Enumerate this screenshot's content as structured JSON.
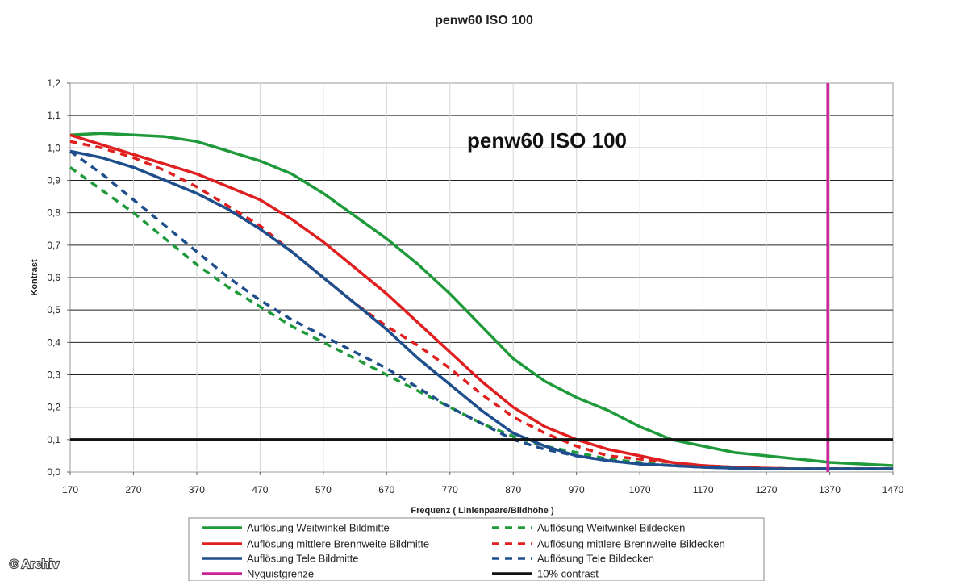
{
  "chart_data": {
    "type": "line",
    "title": "penw60 ISO 100",
    "inner_title": "penw60 ISO 100",
    "xlabel": "Frequenz ( Linienpaare/Bildhöhe )",
    "ylabel": "Kontrast",
    "xlim": [
      170,
      1470
    ],
    "ylim": [
      0.0,
      1.2
    ],
    "x_ticks": [
      "170",
      "270",
      "370",
      "470",
      "570",
      "670",
      "770",
      "870",
      "970",
      "1070",
      "1170",
      "1270",
      "1370",
      "1470"
    ],
    "y_ticks": [
      "0,0",
      "0,1",
      "0,2",
      "0,3",
      "0,4",
      "0,5",
      "0,6",
      "0,7",
      "0,8",
      "0,9",
      "1,0",
      "1,1",
      "1,2"
    ],
    "grid": "horizontal",
    "legend_position": "bottom",
    "copyright": "© Archiv",
    "series": [
      {
        "name": "Auflösung Weitwinkel Bildmitte",
        "color": "#1f9a3a",
        "style": "solid",
        "x": [
          170,
          220,
          270,
          320,
          370,
          420,
          470,
          520,
          570,
          620,
          670,
          720,
          770,
          820,
          870,
          920,
          970,
          1020,
          1070,
          1120,
          1170,
          1220,
          1270,
          1320,
          1370,
          1420,
          1470
        ],
        "y": [
          1.04,
          1.045,
          1.04,
          1.035,
          1.02,
          0.99,
          0.96,
          0.92,
          0.86,
          0.79,
          0.72,
          0.64,
          0.55,
          0.45,
          0.35,
          0.28,
          0.23,
          0.19,
          0.14,
          0.1,
          0.08,
          0.06,
          0.05,
          0.04,
          0.03,
          0.025,
          0.02
        ]
      },
      {
        "name": "Auflösung Weitwinkel Bildecken",
        "color": "#1f9a3a",
        "style": "dashed",
        "x": [
          170,
          220,
          270,
          320,
          370,
          420,
          470,
          520,
          570,
          620,
          670,
          720,
          770,
          820,
          870,
          920,
          970,
          1020,
          1070,
          1120,
          1170,
          1220,
          1270,
          1320,
          1370,
          1420,
          1470
        ],
        "y": [
          0.94,
          0.87,
          0.8,
          0.72,
          0.64,
          0.57,
          0.51,
          0.45,
          0.4,
          0.35,
          0.3,
          0.25,
          0.2,
          0.15,
          0.11,
          0.08,
          0.06,
          0.04,
          0.03,
          0.02,
          0.02,
          0.015,
          0.012,
          0.01,
          0.01,
          0.01,
          0.01
        ]
      },
      {
        "name": "Auflösung mittlere Brennweite Bildmitte",
        "color": "#e02020",
        "style": "solid",
        "x": [
          170,
          220,
          270,
          320,
          370,
          420,
          470,
          520,
          570,
          620,
          670,
          720,
          770,
          820,
          870,
          920,
          970,
          1020,
          1070,
          1120,
          1170,
          1220,
          1270,
          1320,
          1370,
          1420,
          1470
        ],
        "y": [
          1.04,
          1.01,
          0.98,
          0.95,
          0.92,
          0.88,
          0.84,
          0.78,
          0.71,
          0.63,
          0.55,
          0.46,
          0.37,
          0.28,
          0.2,
          0.14,
          0.1,
          0.07,
          0.05,
          0.03,
          0.02,
          0.015,
          0.012,
          0.01,
          0.01,
          0.01,
          0.01
        ]
      },
      {
        "name": "Auflösung mittlere Brennweite Bildecken",
        "color": "#e02020",
        "style": "dashed",
        "x": [
          170,
          220,
          270,
          320,
          370,
          420,
          470,
          520,
          570,
          620,
          670,
          720,
          770,
          820,
          870,
          920,
          970,
          1020,
          1070,
          1120,
          1170,
          1220,
          1270,
          1320,
          1370,
          1420,
          1470
        ],
        "y": [
          1.02,
          1.0,
          0.97,
          0.93,
          0.88,
          0.82,
          0.76,
          0.68,
          0.6,
          0.52,
          0.45,
          0.39,
          0.32,
          0.24,
          0.17,
          0.12,
          0.08,
          0.05,
          0.04,
          0.03,
          0.02,
          0.015,
          0.012,
          0.01,
          0.01,
          0.01,
          0.01
        ]
      },
      {
        "name": "Auflösung Tele Bildmitte",
        "color": "#1f4e8c",
        "style": "solid",
        "x": [
          170,
          220,
          270,
          320,
          370,
          420,
          470,
          520,
          570,
          620,
          670,
          720,
          770,
          820,
          870,
          920,
          970,
          1020,
          1070,
          1120,
          1170,
          1220,
          1270,
          1320,
          1370,
          1420,
          1470
        ],
        "y": [
          0.99,
          0.97,
          0.94,
          0.9,
          0.86,
          0.81,
          0.75,
          0.68,
          0.6,
          0.52,
          0.44,
          0.35,
          0.27,
          0.19,
          0.12,
          0.08,
          0.05,
          0.035,
          0.025,
          0.02,
          0.015,
          0.012,
          0.01,
          0.01,
          0.01,
          0.01,
          0.01
        ]
      },
      {
        "name": "Auflösung Tele Bildecken",
        "color": "#1f4e8c",
        "style": "dashed",
        "x": [
          170,
          220,
          270,
          320,
          370,
          420,
          470,
          520,
          570,
          620,
          670,
          720,
          770,
          820,
          870,
          920,
          970,
          1020,
          1070,
          1120,
          1170,
          1220,
          1270,
          1320,
          1370,
          1420,
          1470
        ],
        "y": [
          0.99,
          0.92,
          0.84,
          0.76,
          0.68,
          0.6,
          0.53,
          0.47,
          0.42,
          0.37,
          0.32,
          0.26,
          0.2,
          0.15,
          0.1,
          0.07,
          0.05,
          0.035,
          0.025,
          0.02,
          0.015,
          0.012,
          0.01,
          0.01,
          0.01,
          0.01,
          0.01
        ]
      }
    ],
    "reference_lines": [
      {
        "name": "Nyquistgrenze",
        "color": "#cc2299",
        "orientation": "vertical",
        "value": 1367
      },
      {
        "name": "10% contrast",
        "color": "#111111",
        "orientation": "horizontal",
        "value": 0.1
      }
    ],
    "legend": [
      {
        "label": "Auflösung Weitwinkel Bildmitte",
        "color": "#1f9a3a",
        "style": "solid"
      },
      {
        "label": "Auflösung Weitwinkel Bildecken",
        "color": "#1f9a3a",
        "style": "dashed"
      },
      {
        "label": "Auflösung mittlere Brennweite Bildmitte",
        "color": "#e02020",
        "style": "solid"
      },
      {
        "label": "Auflösung mittlere Brennweite Bildecken",
        "color": "#e02020",
        "style": "dashed"
      },
      {
        "label": "Auflösung Tele Bildmitte",
        "color": "#1f4e8c",
        "style": "solid"
      },
      {
        "label": "Auflösung Tele Bildecken",
        "color": "#1f4e8c",
        "style": "dashed"
      },
      {
        "label": "Nyquistgrenze",
        "color": "#cc2299",
        "style": "solid"
      },
      {
        "label": "10% contrast",
        "color": "#111111",
        "style": "solid"
      }
    ]
  }
}
